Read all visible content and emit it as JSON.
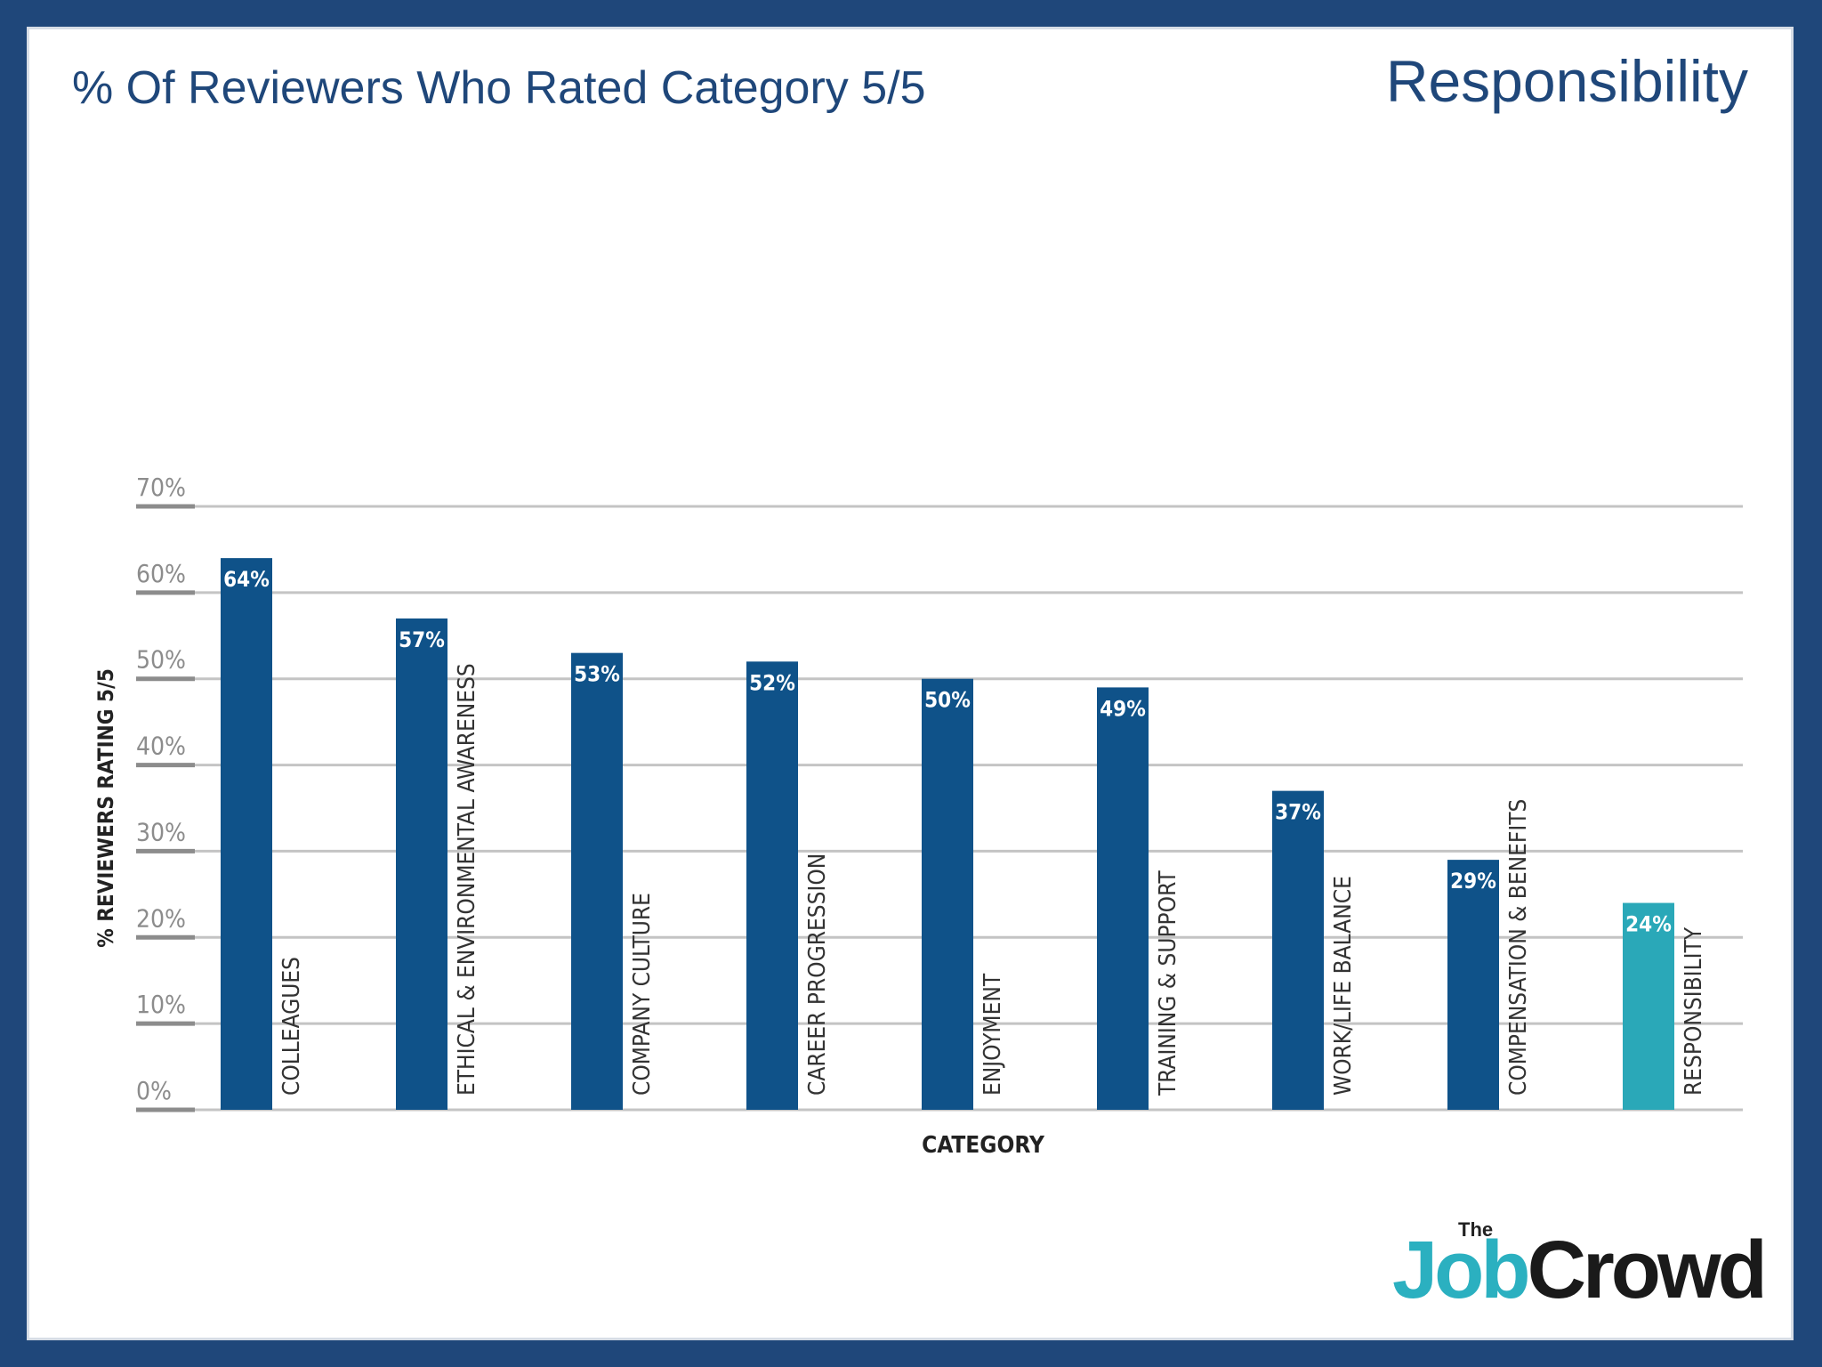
{
  "header": {
    "title": "% Of Reviewers Who Rated Category 5/5",
    "section": "Responsibility"
  },
  "logo": {
    "the": "The",
    "job": "Job",
    "crowd": "Crowd"
  },
  "colors": {
    "bar": "#0f5289",
    "highlight": "#2aa8b8",
    "grid": "#c4c4c4",
    "tick": "#8c8c8c",
    "axis_text": "#333333"
  },
  "chart_data": {
    "type": "bar",
    "title": "",
    "xlabel": "CATEGORY",
    "ylabel": "% REVIEWERS RATING 5/5",
    "ylim": [
      0,
      70
    ],
    "yticks": [
      0,
      10,
      20,
      30,
      40,
      50,
      60,
      70
    ],
    "ytick_labels": [
      "0%",
      "10%",
      "20%",
      "30%",
      "40%",
      "50%",
      "60%",
      "70%"
    ],
    "grid": true,
    "categories": [
      "COLLEAGUES",
      "ETHICAL & ENVIRONMENTAL AWARENESS",
      "COMPANY CULTURE",
      "CAREER PROGRESSION",
      "ENJOYMENT",
      "TRAINING & SUPPORT",
      "WORK/LIFE BALANCE",
      "COMPENSATION & BENEFITS",
      "RESPONSIBILITY"
    ],
    "values": [
      64,
      57,
      53,
      52,
      50,
      49,
      37,
      29,
      24
    ],
    "data_labels": [
      "64%",
      "57%",
      "53%",
      "52%",
      "50%",
      "49%",
      "37%",
      "29%",
      "24%"
    ],
    "highlight_category": "RESPONSIBILITY"
  }
}
